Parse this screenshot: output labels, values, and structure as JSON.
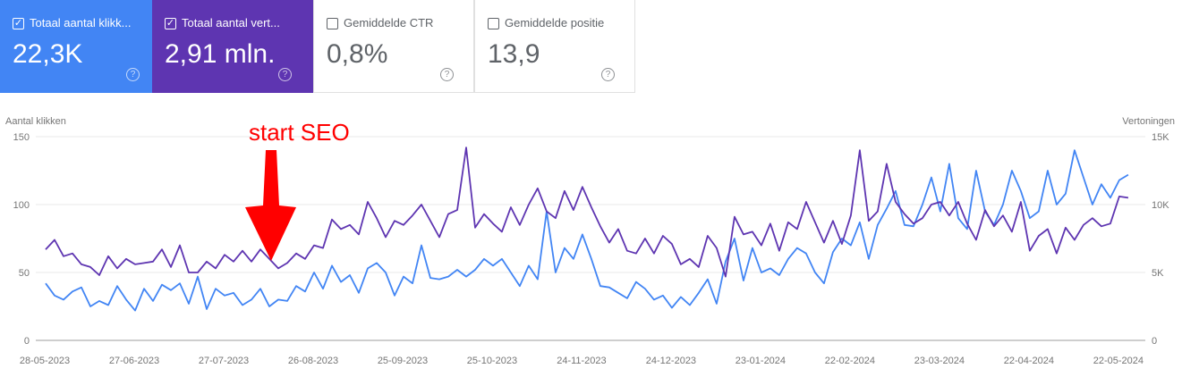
{
  "cards": [
    {
      "label": "Totaal aantal klikk...",
      "value": "22,3K",
      "checked": true,
      "color": "#4285f4"
    },
    {
      "label": "Totaal aantal vert...",
      "value": "2,91 mln.",
      "checked": true,
      "color": "#5e35b1"
    },
    {
      "label": "Gemiddelde CTR",
      "value": "0,8%",
      "checked": false
    },
    {
      "label": "Gemiddelde positie",
      "value": "13,9",
      "checked": false
    }
  ],
  "help_icon": "?",
  "check_icon": "✓",
  "annotation": {
    "text": "start SEO",
    "color": "#ff0000",
    "icon": "arrow-down"
  },
  "chart_data": {
    "type": "line",
    "ylabel_left": "Aantal klikken",
    "ylabel_right": "Vertoningen",
    "yticks_left": [
      "0",
      "50",
      "100",
      "150"
    ],
    "yticks_right": [
      "0",
      "5K",
      "10K",
      "15K"
    ],
    "ylim_left": [
      0,
      150
    ],
    "ylim_right": [
      0,
      15000
    ],
    "grid": true,
    "x_start": "28-05-2023",
    "x_step_days": 3,
    "xticks": [
      "28-05-2023",
      "27-06-2023",
      "27-07-2023",
      "26-08-2023",
      "25-09-2023",
      "25-10-2023",
      "24-11-2023",
      "24-12-2023",
      "23-01-2024",
      "22-02-2024",
      "23-03-2024",
      "22-04-2024",
      "22-05-2024"
    ],
    "series": [
      {
        "name": "Totaal aantal klikken",
        "axis": "left",
        "color": "#4285f4",
        "values": [
          42,
          33,
          30,
          36,
          39,
          25,
          29,
          26,
          40,
          30,
          22,
          38,
          29,
          41,
          37,
          42,
          27,
          47,
          23,
          38,
          33,
          35,
          26,
          30,
          38,
          25,
          30,
          29,
          40,
          36,
          50,
          38,
          55,
          43,
          48,
          35,
          53,
          57,
          50,
          33,
          47,
          42,
          70,
          46,
          45,
          47,
          52,
          47,
          52,
          60,
          55,
          60,
          50,
          40,
          55,
          45,
          95,
          50,
          68,
          60,
          78,
          60,
          40,
          39,
          35,
          31,
          43,
          38,
          30,
          33,
          24,
          32,
          26,
          35,
          45,
          27,
          58,
          75,
          44,
          68,
          50,
          53,
          48,
          60,
          68,
          64,
          50,
          42,
          65,
          75,
          70,
          87,
          60,
          85,
          97,
          110,
          85,
          84,
          100,
          120,
          95,
          130,
          90,
          82,
          125,
          95,
          85,
          100,
          125,
          110,
          90,
          95,
          125,
          100,
          108,
          140,
          120,
          100,
          115,
          105,
          118,
          122
        ]
      },
      {
        "name": "Totaal aantal vertoningen",
        "axis": "right",
        "color": "#5e35b1",
        "values": [
          6700,
          7400,
          6200,
          6400,
          5600,
          5400,
          4800,
          6200,
          5300,
          6000,
          5600,
          5700,
          5800,
          6700,
          5400,
          7000,
          5000,
          5000,
          5800,
          5300,
          6300,
          5800,
          6600,
          5800,
          6700,
          6000,
          5300,
          5700,
          6400,
          6000,
          7000,
          6800,
          8900,
          8200,
          8500,
          7800,
          10200,
          9000,
          7600,
          8800,
          8500,
          9200,
          10000,
          8800,
          7600,
          9300,
          9600,
          14200,
          8300,
          9300,
          8600,
          8000,
          9800,
          8500,
          10000,
          11200,
          9500,
          9000,
          11000,
          9600,
          11300,
          9800,
          8400,
          7200,
          8200,
          6600,
          6400,
          7500,
          6400,
          7700,
          7100,
          5600,
          6000,
          5400,
          7700,
          6800,
          4700,
          9100,
          7800,
          8000,
          7000,
          8600,
          6600,
          8700,
          8200,
          10200,
          8700,
          7200,
          8800,
          7100,
          9200,
          14000,
          8800,
          9500,
          13000,
          10200,
          9300,
          8600,
          9000,
          10000,
          10200,
          9200,
          10200,
          8600,
          7400,
          9600,
          8400,
          9200,
          8000,
          10200,
          6600,
          7700,
          8200,
          6400,
          8300,
          7400,
          8500,
          9000,
          8400,
          8600,
          10600,
          10500
        ]
      }
    ]
  }
}
